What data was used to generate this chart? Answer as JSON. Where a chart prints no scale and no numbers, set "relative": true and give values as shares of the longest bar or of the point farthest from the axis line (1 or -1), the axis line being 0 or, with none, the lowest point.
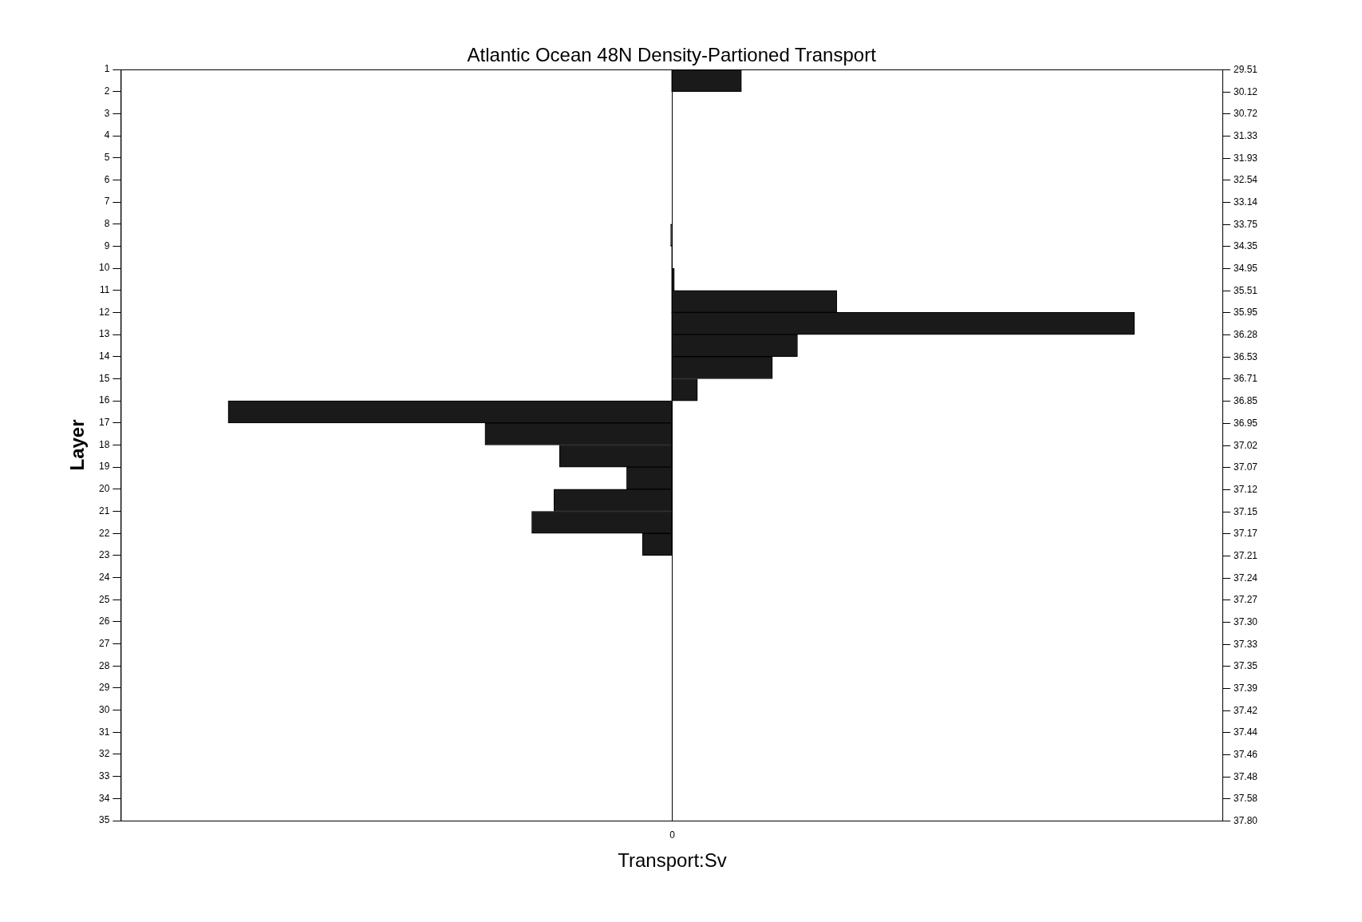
{
  "chart_data": {
    "type": "bar",
    "orientation": "horizontal",
    "relative": true,
    "title": "Atlantic Ocean 48N Density-Partioned Transport",
    "xlabel": "Transport:Sv",
    "ylabel": "Layer",
    "x": [
      1.5,
      2.5,
      3.5,
      4.5,
      5.5,
      6.5,
      7.5,
      8.5,
      9.5,
      10.5,
      11.5,
      12.5,
      13.5,
      14.5,
      15.5,
      16.5,
      17.5,
      18.5,
      19.5,
      20.5,
      21.5,
      22.5,
      23.5,
      24.5,
      25.5,
      26.5,
      27.5,
      28.5,
      29.5,
      30.5,
      31.5,
      32.5,
      33.5,
      34.5
    ],
    "values": [
      0.151,
      0,
      0,
      0,
      0,
      0,
      0,
      -0.002,
      0.002,
      0.006,
      0.357,
      1,
      0.272,
      0.218,
      0.056,
      -0.958,
      -0.403,
      -0.242,
      -0.097,
      -0.254,
      -0.302,
      -0.063,
      0,
      0,
      0,
      0,
      0,
      0,
      0,
      0,
      0,
      0,
      0,
      0
    ],
    "color": "#1a1a1a",
    "ylim": [
      35,
      1
    ],
    "yticks": [
      1,
      2,
      3,
      4,
      5,
      6,
      7,
      8,
      9,
      10,
      11,
      12,
      13,
      14,
      15,
      16,
      17,
      18,
      19,
      20,
      21,
      22,
      23,
      24,
      25,
      26,
      27,
      28,
      29,
      30,
      31,
      32,
      33,
      34,
      35
    ],
    "legend": false,
    "grid": false,
    "annotations": [
      "0",
      "29.51",
      "30.12",
      "30.72",
      "31.33",
      "31.93",
      "32.54",
      "33.14",
      "33.75",
      "34.35",
      "34.95",
      "35.51",
      "35.95",
      "36.28",
      "36.53",
      "36.71",
      "36.85",
      "36.95",
      "37.02",
      "37.07",
      "37.12",
      "37.15",
      "37.17",
      "37.21",
      "37.24",
      "37.27",
      "37.30",
      "37.33",
      "37.35",
      "37.39",
      "37.42",
      "37.44",
      "37.46",
      "37.48",
      "37.58",
      "37.80"
    ]
  }
}
